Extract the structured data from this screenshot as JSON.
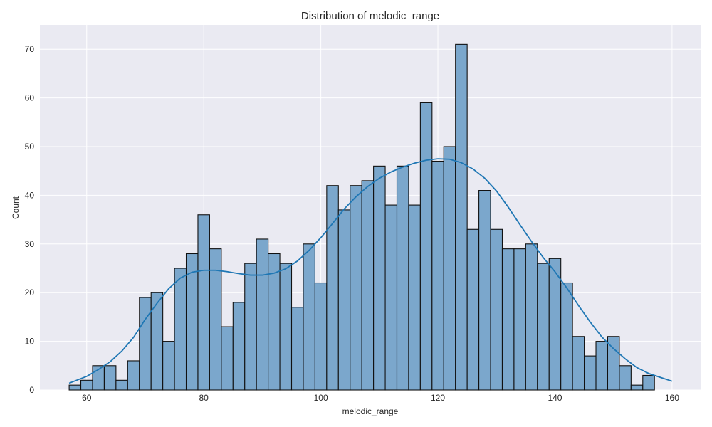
{
  "chart_data": {
    "type": "bar",
    "title": "Distribution of melodic_range",
    "xlabel": "melodic_range",
    "ylabel": "Count",
    "xlim": [
      52.0,
      165.0
    ],
    "ylim": [
      0,
      75
    ],
    "x_ticks": [
      60,
      80,
      100,
      120,
      140,
      160
    ],
    "y_ticks": [
      0,
      10,
      20,
      30,
      40,
      50,
      60,
      70
    ],
    "grid": true,
    "bin_start": 57.0,
    "bin_width": 2.0,
    "values": [
      1,
      2,
      5,
      5,
      2,
      6,
      19,
      20,
      10,
      25,
      28,
      36,
      29,
      13,
      18,
      26,
      31,
      28,
      26,
      17,
      30,
      22,
      42,
      37,
      42,
      43,
      46,
      38,
      46,
      38,
      59,
      47,
      50,
      71,
      33,
      41,
      33,
      29,
      29,
      30,
      26,
      27,
      22,
      11,
      7,
      10,
      11,
      5,
      1,
      3
    ],
    "kde": {
      "x": [
        57,
        60,
        62,
        64,
        66,
        68,
        70,
        72,
        74,
        76,
        78,
        80,
        82,
        84,
        86,
        88,
        90,
        92,
        94,
        96,
        98,
        100,
        102,
        104,
        106,
        108,
        110,
        112,
        114,
        116,
        118,
        120,
        122,
        124,
        126,
        128,
        130,
        132,
        134,
        136,
        138,
        140,
        142,
        144,
        146,
        148,
        150,
        152,
        154,
        156,
        158,
        160
      ],
      "y": [
        1.4,
        2.8,
        4.2,
        5.8,
        8.0,
        10.8,
        14.5,
        17.8,
        20.8,
        23.0,
        24.2,
        24.6,
        24.6,
        24.3,
        23.9,
        23.6,
        23.6,
        24.0,
        24.9,
        26.5,
        28.7,
        31.3,
        34.2,
        37.2,
        39.7,
        41.8,
        43.5,
        44.8,
        45.8,
        46.6,
        47.2,
        47.5,
        47.4,
        46.7,
        45.4,
        43.5,
        40.9,
        37.6,
        34.0,
        30.5,
        27.2,
        24.3,
        21.0,
        17.4,
        14.0,
        10.9,
        8.5,
        6.4,
        4.6,
        3.4,
        2.6,
        1.8
      ]
    },
    "colors": {
      "background": "#eaeaf2",
      "bar_fill": "#7ba7cc",
      "bar_edge": "#111111",
      "kde_line": "#1f77b4",
      "grid": "#ffffff"
    }
  }
}
